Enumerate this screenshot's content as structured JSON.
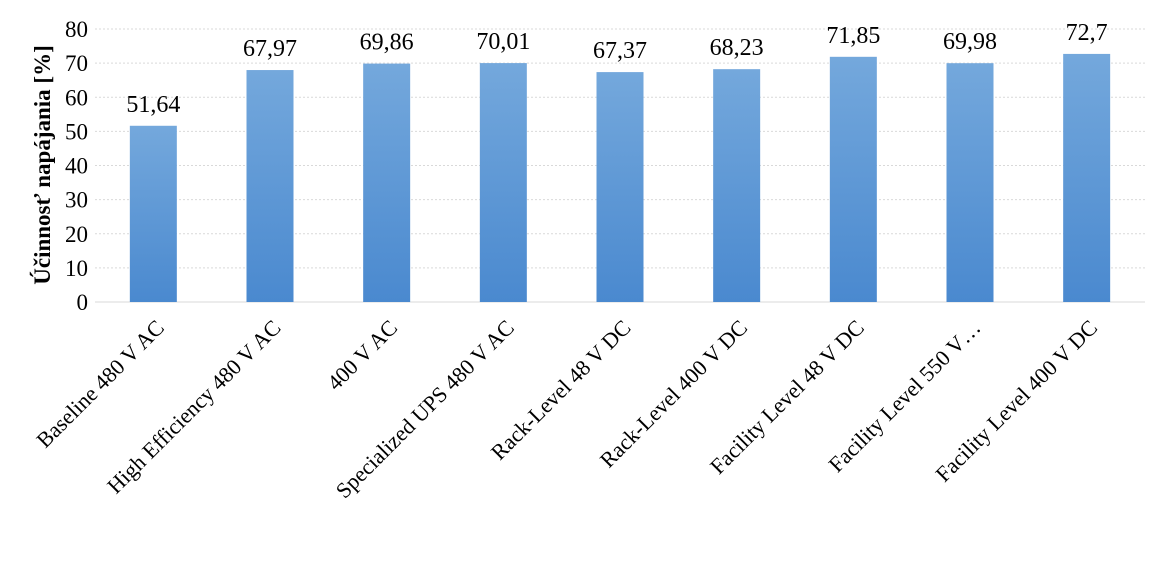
{
  "chart_data": {
    "type": "bar",
    "title": "",
    "xlabel": "",
    "ylabel": "Účinnosť napájania [%]",
    "ylim": [
      0,
      80
    ],
    "yticks": [
      0,
      10,
      20,
      30,
      40,
      50,
      60,
      70,
      80
    ],
    "grid": true,
    "legend": "none",
    "categories": [
      "Baseline 480 V AC",
      "High Efficiency 480 V AC",
      "400 V AC",
      "Specialized UPS 480 V AC",
      "Rack-Level 48 V DC",
      "Rack-Level 400 V DC",
      "Facility Level 48 V DC",
      "Facility Level 550 V…",
      "Facility Level 400 V DC"
    ],
    "values": [
      51.64,
      67.97,
      69.86,
      70.01,
      67.37,
      68.23,
      71.85,
      69.98,
      72.7
    ],
    "data_labels": [
      "51,64",
      "67,97",
      "69,86",
      "70,01",
      "67,37",
      "68,23",
      "71,85",
      "69,98",
      "72,7"
    ],
    "colors": {
      "bar_top": "#74a8dc",
      "bar_bottom": "#4a89cf",
      "grid": "#d9d9d9",
      "axis": "#d9d9d9"
    }
  }
}
